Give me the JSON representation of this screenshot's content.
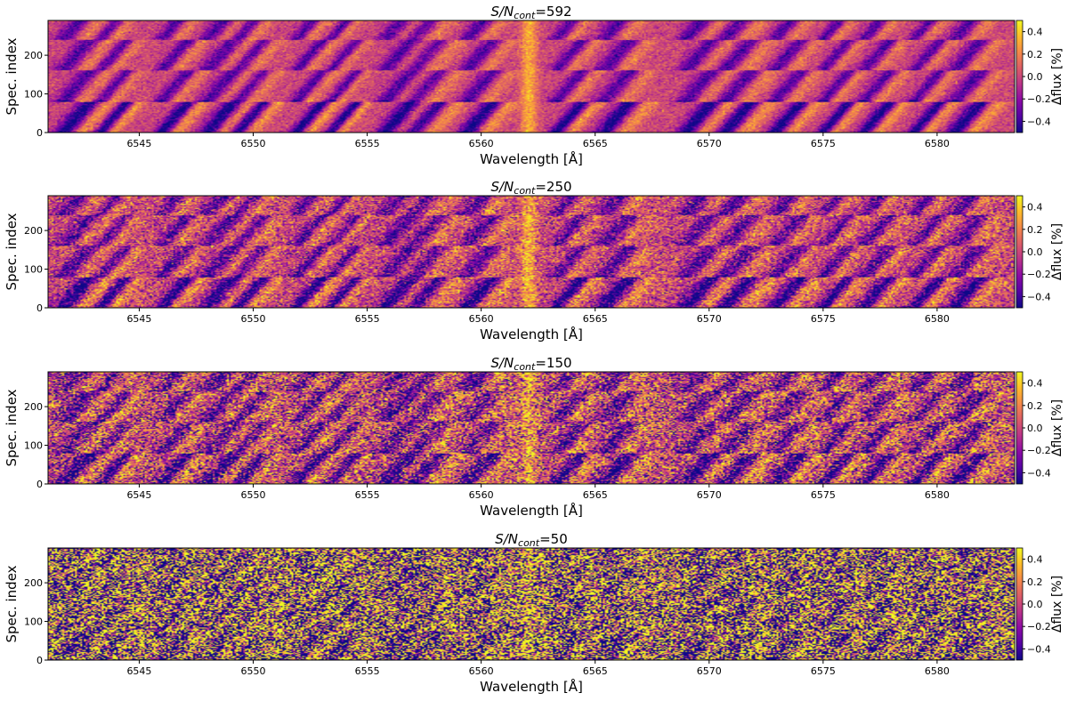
{
  "chart_data": [
    {
      "type": "heatmap",
      "title": {
        "prefix": "S/N",
        "sub": "cont",
        "suffix": "=592"
      },
      "snr": 592,
      "xlabel": "Wavelength [Å]",
      "ylabel": "Spec. index",
      "xlim": [
        6541,
        6583.4
      ],
      "ylim": [
        0,
        290
      ],
      "xticks": [
        "6545",
        "6550",
        "6555",
        "6560",
        "6565",
        "6570",
        "6575",
        "6580"
      ],
      "yticks": [
        "0",
        "100",
        "200"
      ],
      "colorbar": {
        "label": "Δflux [%]",
        "colormap": "plasma",
        "range": [
          -0.5,
          0.5
        ],
        "ticks": [
          "0.4",
          "0.2",
          "0.0",
          "−0.2",
          "−0.4"
        ]
      }
    },
    {
      "type": "heatmap",
      "title": {
        "prefix": "S/N",
        "sub": "cont",
        "suffix": "=250"
      },
      "snr": 250,
      "xlabel": "Wavelength [Å]",
      "ylabel": "Spec. index",
      "xlim": [
        6541,
        6583.4
      ],
      "ylim": [
        0,
        290
      ],
      "xticks": [
        "6545",
        "6550",
        "6555",
        "6560",
        "6565",
        "6570",
        "6575",
        "6580"
      ],
      "yticks": [
        "0",
        "100",
        "200"
      ],
      "colorbar": {
        "label": "Δflux [%]",
        "colormap": "plasma",
        "range": [
          -0.5,
          0.5
        ],
        "ticks": [
          "0.4",
          "0.2",
          "0.0",
          "−0.2",
          "−0.4"
        ]
      }
    },
    {
      "type": "heatmap",
      "title": {
        "prefix": "S/N",
        "sub": "cont",
        "suffix": "=150"
      },
      "snr": 150,
      "xlabel": "Wavelength [Å]",
      "ylabel": "Spec. index",
      "xlim": [
        6541,
        6583.4
      ],
      "ylim": [
        0,
        290
      ],
      "xticks": [
        "6545",
        "6550",
        "6555",
        "6560",
        "6565",
        "6570",
        "6575",
        "6580"
      ],
      "yticks": [
        "0",
        "100",
        "200"
      ],
      "colorbar": {
        "label": "Δflux [%]",
        "colormap": "plasma",
        "range": [
          -0.5,
          0.5
        ],
        "ticks": [
          "0.4",
          "0.2",
          "0.0",
          "−0.2",
          "−0.4"
        ]
      }
    },
    {
      "type": "heatmap",
      "title": {
        "prefix": "S/N",
        "sub": "cont",
        "suffix": "=50"
      },
      "snr": 50,
      "xlabel": "Wavelength [Å]",
      "ylabel": "Spec. index",
      "xlim": [
        6541,
        6583.4
      ],
      "ylim": [
        0,
        290
      ],
      "xticks": [
        "6545",
        "6550",
        "6555",
        "6560",
        "6565",
        "6570",
        "6575",
        "6580"
      ],
      "yticks": [
        "0",
        "100",
        "200"
      ],
      "colorbar": {
        "label": "Δflux [%]",
        "colormap": "plasma",
        "range": [
          -0.5,
          0.5
        ],
        "ticks": [
          "0.4",
          "0.2",
          "0.0",
          "−0.2",
          "−0.4"
        ]
      }
    }
  ]
}
